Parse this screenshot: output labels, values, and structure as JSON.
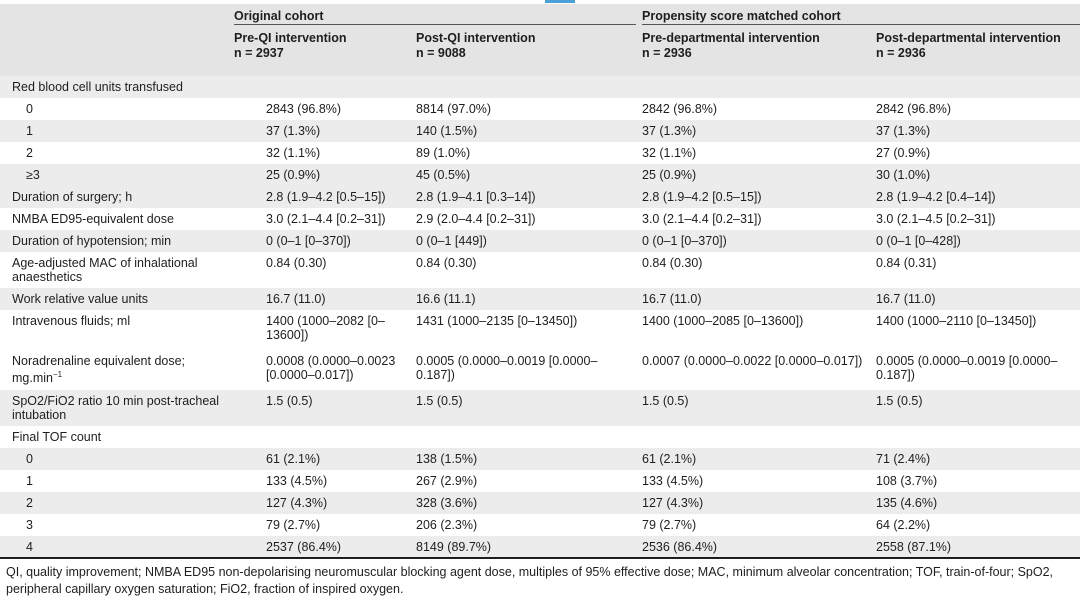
{
  "table": {
    "group_headers": [
      "Original cohort",
      "Propensity score matched cohort"
    ],
    "columns": [
      {
        "name": "Pre-QI intervention",
        "n": "n = 2937"
      },
      {
        "name": "Post-QI intervention",
        "n": "n = 9088"
      },
      {
        "name": "Pre-departmental intervention",
        "n": "n = 2936"
      },
      {
        "name": "Post-departmental intervention",
        "n": "n = 2936"
      }
    ],
    "rows": [
      {
        "label": "Red blood cell units transfused",
        "kind": "header",
        "values": [
          "",
          "",
          "",
          ""
        ]
      },
      {
        "label": "0",
        "kind": "sub",
        "values": [
          "2843 (96.8%)",
          "8814 (97.0%)",
          "2842 (96.8%)",
          "2842 (96.8%)"
        ]
      },
      {
        "label": "1",
        "kind": "sub",
        "values": [
          "37 (1.3%)",
          "140 (1.5%)",
          "37 (1.3%)",
          "37 (1.3%)"
        ]
      },
      {
        "label": "2",
        "kind": "sub",
        "values": [
          "32 (1.1%)",
          "89 (1.0%)",
          "32 (1.1%)",
          "27 (0.9%)"
        ]
      },
      {
        "label": "≥3",
        "kind": "sub",
        "values": [
          "25 (0.9%)",
          "45 (0.5%)",
          "25 (0.9%)",
          "30 (1.0%)"
        ]
      },
      {
        "label": "Duration of surgery; h",
        "kind": "row",
        "values": [
          "2.8 (1.9–4.2 [0.5–15])",
          "2.8 (1.9–4.1 [0.3–14])",
          "2.8 (1.9–4.2 [0.5–15])",
          "2.8 (1.9–4.2 [0.4–14])"
        ]
      },
      {
        "label": "NMBA ED95-equivalent dose",
        "kind": "row",
        "values": [
          "3.0 (2.1–4.4 [0.2–31])",
          "2.9 (2.0–4.4 [0.2–31])",
          "3.0 (2.1–4.4 [0.2–31])",
          "3.0 (2.1–4.5 [0.2–31])"
        ]
      },
      {
        "label": "Duration of hypotension; min",
        "kind": "row",
        "values": [
          "0 (0–1 [0–370])",
          "0 (0–1 [449])",
          "0 (0–1 [0–370])",
          "0 (0–1 [0–428])"
        ]
      },
      {
        "label": "Age-adjusted MAC of inhalational anaesthetics",
        "kind": "row",
        "values": [
          "0.84 (0.30)",
          "0.84 (0.30)",
          "0.84 (0.30)",
          "0.84 (0.31)"
        ]
      },
      {
        "label": "Work relative value units",
        "kind": "row",
        "values": [
          "16.7 (11.0)",
          "16.6 (11.1)",
          "16.7 (11.0)",
          "16.7 (11.0)"
        ]
      },
      {
        "label": "Intravenous fluids; ml",
        "kind": "row",
        "values": [
          "1400 (1000–2082 [0–13600])",
          "1431 (1000–2135 [0–13450])",
          "1400 (1000–2085 [0–13600])",
          "1400 (1000–2110 [0–13450])"
        ]
      },
      {
        "label": "Noradrenaline equivalent dose; mg.min",
        "label_sup": "−1",
        "kind": "row",
        "values": [
          "0.0008 (0.0000–0.0023 [0.0000–0.017])",
          "0.0005 (0.0000–0.0019 [0.0000–0.187])",
          "0.0007 (0.0000–0.0022 [0.0000–0.017])",
          "0.0005 (0.0000–0.0019 [0.0000–0.187])"
        ]
      },
      {
        "label": "SpO2/FiO2 ratio 10 min post-tracheal intubation",
        "kind": "row",
        "values": [
          "1.5 (0.5)",
          "1.5 (0.5)",
          "1.5 (0.5)",
          "1.5 (0.5)"
        ]
      },
      {
        "label": "Final TOF count",
        "kind": "header",
        "values": [
          "",
          "",
          "",
          ""
        ]
      },
      {
        "label": "0",
        "kind": "sub",
        "values": [
          "61 (2.1%)",
          "138 (1.5%)",
          "61 (2.1%)",
          "71 (2.4%)"
        ]
      },
      {
        "label": "1",
        "kind": "sub",
        "values": [
          "133 (4.5%)",
          "267 (2.9%)",
          "133 (4.5%)",
          "108 (3.7%)"
        ]
      },
      {
        "label": "2",
        "kind": "sub",
        "values": [
          "127 (4.3%)",
          "328 (3.6%)",
          "127 (4.3%)",
          "135 (4.6%)"
        ]
      },
      {
        "label": "3",
        "kind": "sub",
        "values": [
          "79 (2.7%)",
          "206 (2.3%)",
          "79 (2.7%)",
          "64 (2.2%)"
        ]
      },
      {
        "label": "4",
        "kind": "sub",
        "values": [
          "2537 (86.4%)",
          "8149 (89.7%)",
          "2536 (86.4%)",
          "2558 (87.1%)"
        ]
      }
    ]
  },
  "footnote": "QI, quality improvement; NMBA ED95 non-depolarising neuromuscular blocking agent dose, multiples of 95% effective dose; MAC, minimum alveolar concentration; TOF, train-of-four; SpO2, peripheral capillary oxygen saturation; FiO2, fraction of inspired oxygen."
}
